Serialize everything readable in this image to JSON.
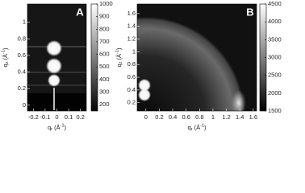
{
  "chart_data": [
    {
      "type": "heatmap",
      "panel_label": "A",
      "x_label": {
        "text": "q",
        "sub": "r",
        "unit": " (Å",
        "sup": "-1",
        "end": ")"
      },
      "y_label": {
        "text": "q",
        "sub": "z",
        "unit": " (Å",
        "sup": "-1",
        "end": ")"
      },
      "xlim": [
        -0.25,
        0.25
      ],
      "xticks": [
        -0.2,
        -0.1,
        0,
        0.1,
        0.2
      ],
      "ylim": [
        -0.07,
        1.22
      ],
      "yticks": [
        0,
        0.2,
        0.4,
        0.6,
        0.8,
        1
      ],
      "colorbar_lim": [
        150,
        1000
      ],
      "colorbar_ticks": [
        200,
        300,
        400,
        500,
        600,
        700,
        800,
        900,
        1000
      ]
    },
    {
      "type": "heatmap",
      "panel_label": "B",
      "x_label": {
        "text": "q",
        "sub": "r",
        "unit": " (Å",
        "sup": "-1",
        "end": ")"
      },
      "y_label": {
        "text": "q",
        "sub": "z",
        "unit": " (Å",
        "sup": "-1",
        "end": ")"
      },
      "xlim": [
        -0.13,
        1.65
      ],
      "xticks": [
        0,
        0.2,
        0.4,
        0.6,
        0.8,
        1,
        1.2,
        1.4,
        1.6
      ],
      "ylim": [
        0.07,
        1.75
      ],
      "yticks": [
        0.2,
        0.4,
        0.6,
        0.8,
        1,
        1.2,
        1.4,
        1.6
      ],
      "colorbar_lim": [
        1500,
        4500
      ],
      "colorbar_ticks": [
        1500,
        2000,
        2500,
        3000,
        3500,
        4000,
        4500
      ]
    }
  ]
}
